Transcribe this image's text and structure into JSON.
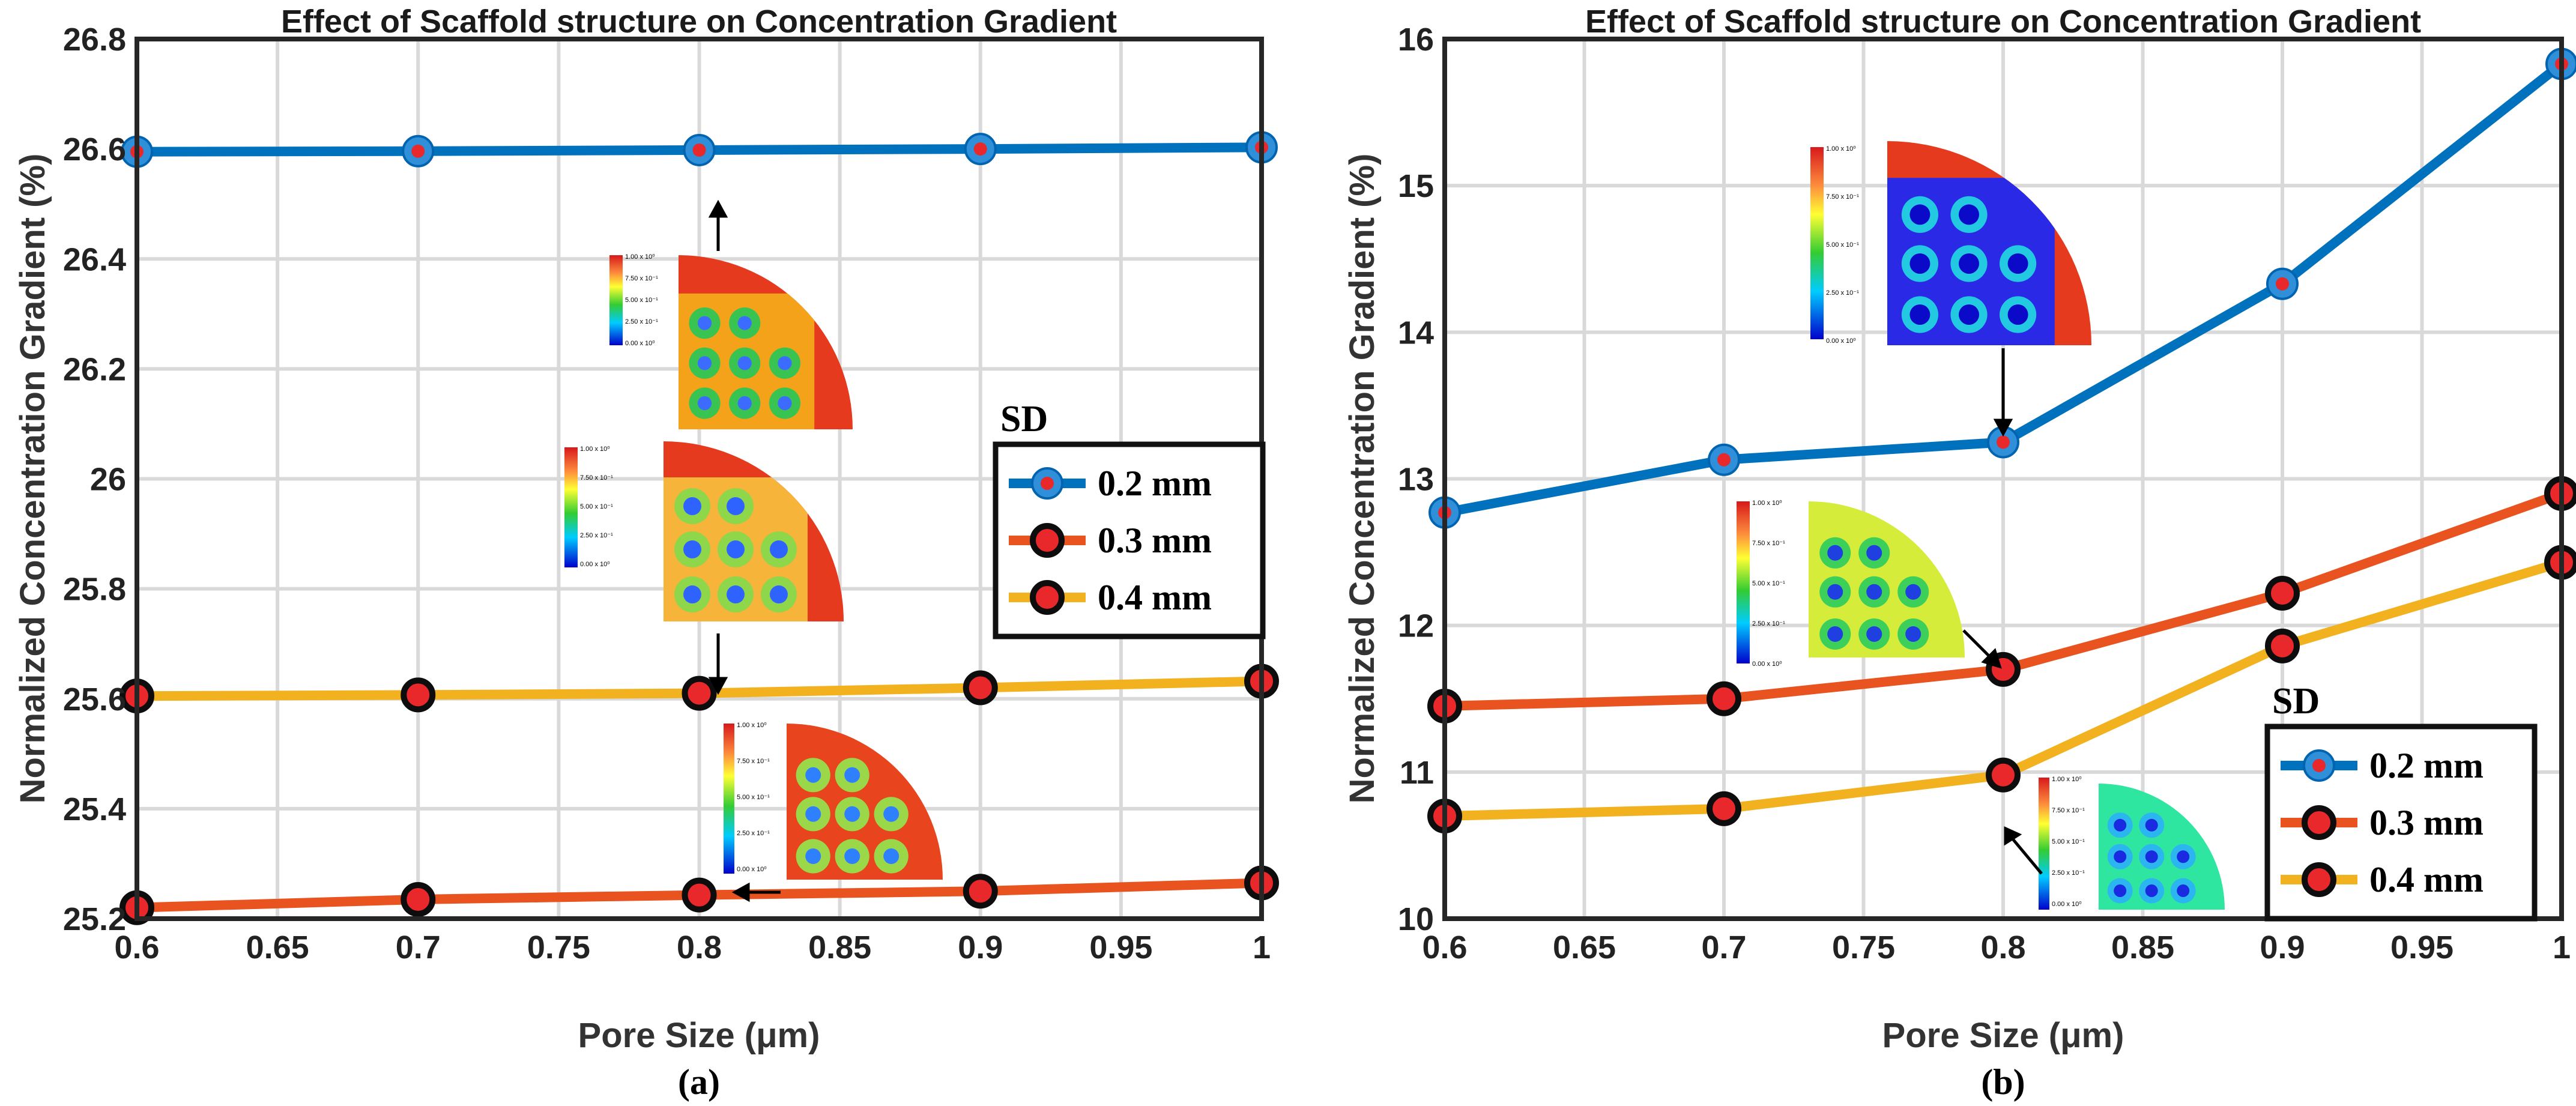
{
  "chart_data": [
    {
      "type": "line",
      "panel": "a",
      "caption": "(a)",
      "title": "Effect of Scaffold structure on Concentration Gradient",
      "xlabel": "Pore Size (μm)",
      "ylabel": "Normalized Concentration Gradient (%)",
      "x": [
        0.6,
        0.7,
        0.8,
        0.9,
        1
      ],
      "xticks": [
        "0.6",
        "0.65",
        "0.7",
        "0.75",
        "0.8",
        "0.85",
        "0.9",
        "0.95",
        "1"
      ],
      "yticks": [
        "25.2",
        "25.4",
        "25.6",
        "25.8",
        "26",
        "26.2",
        "26.4",
        "26.6",
        "26.8"
      ],
      "xlim": [
        0.6,
        1
      ],
      "ylim": [
        25.2,
        26.8
      ],
      "grid": true,
      "legend_title": "SD",
      "legend_position": "center-right",
      "series": [
        {
          "name": "0.2 mm",
          "values": [
            26.595,
            26.596,
            26.598,
            26.6,
            26.603
          ],
          "color": "#0072BD",
          "marker_color": "#E8282B"
        },
        {
          "name": "0.3 mm",
          "values": [
            25.22,
            25.235,
            25.243,
            25.25,
            25.265
          ],
          "color": "#E8531F",
          "marker_color": "#E8282B"
        },
        {
          "name": "0.4 mm",
          "values": [
            25.605,
            25.607,
            25.61,
            25.62,
            25.632
          ],
          "color": "#F2B21F",
          "marker_color": "#E8282B"
        }
      ],
      "colorbar_labels": [
        "1.00 x 10⁰",
        "7.50 x 10⁻¹",
        "5.00 x 10⁻¹",
        "2.50 x 10⁻¹",
        "0.00 x 10⁰"
      ]
    },
    {
      "type": "line",
      "panel": "b",
      "caption": "(b)",
      "title": "Effect of Scaffold structure on Concentration Gradient",
      "xlabel": "Pore Size (μm)",
      "ylabel": "Normalized Concentration Gradient (%)",
      "x": [
        0.6,
        0.7,
        0.8,
        0.9,
        1
      ],
      "xticks": [
        "0.6",
        "0.65",
        "0.7",
        "0.75",
        "0.8",
        "0.85",
        "0.9",
        "0.95",
        "1"
      ],
      "yticks": [
        "10",
        "11",
        "12",
        "13",
        "14",
        "15",
        "16"
      ],
      "xlim": [
        0.6,
        1
      ],
      "ylim": [
        10,
        16
      ],
      "grid": true,
      "legend_title": "SD",
      "legend_position": "bottom-right",
      "series": [
        {
          "name": "0.2 mm",
          "values": [
            12.77,
            13.13,
            13.25,
            14.33,
            15.83
          ],
          "color": "#0072BD",
          "marker_color": "#E8282B"
        },
        {
          "name": "0.3 mm",
          "values": [
            11.45,
            11.5,
            11.7,
            12.22,
            12.9
          ],
          "color": "#E8531F",
          "marker_color": "#E8282B"
        },
        {
          "name": "0.4 mm",
          "values": [
            10.7,
            10.75,
            10.98,
            11.86,
            12.43
          ],
          "color": "#F2B21F",
          "marker_color": "#E8282B"
        }
      ],
      "colorbar_labels": [
        "1.00 x 10⁰",
        "7.50 x 10⁻¹",
        "5.00 x 10⁻¹",
        "2.50 x 10⁻¹",
        "0.00 x 10⁰"
      ]
    }
  ]
}
